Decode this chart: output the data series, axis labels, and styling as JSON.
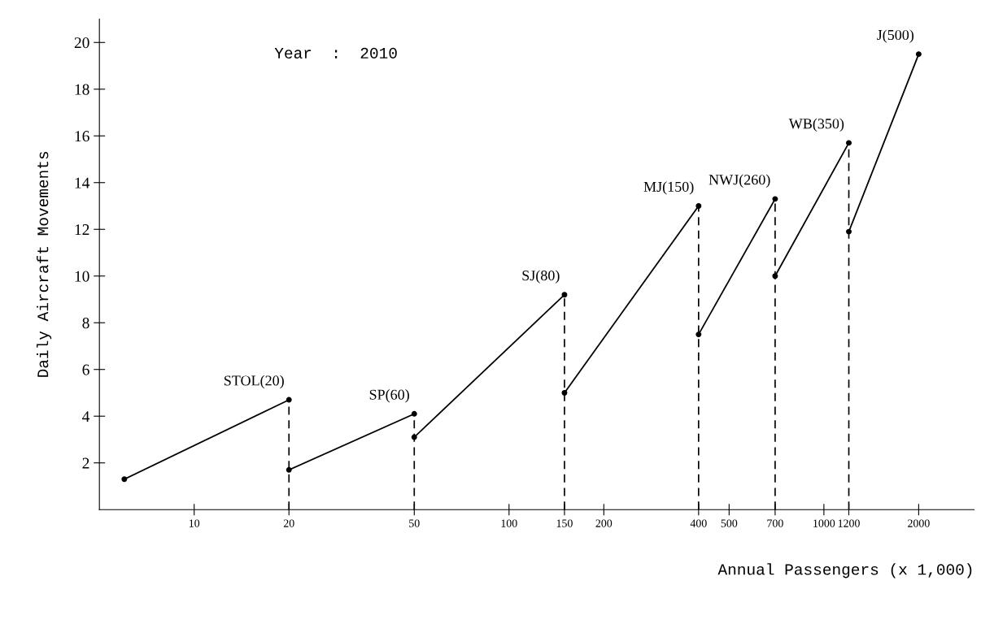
{
  "chart_data": {
    "type": "line",
    "xlabel": "Annual Passengers (x 1,000)",
    "ylabel": "Daily Aircraft Movements",
    "annotations": [
      "Year  :  2010"
    ],
    "log": "x",
    "xlim": [
      5,
      3000
    ],
    "xticks": [
      10,
      20,
      50,
      100,
      150,
      200,
      400,
      500,
      700,
      1000,
      1200,
      2000
    ],
    "ylim": [
      0,
      21
    ],
    "yticks": [
      2,
      4,
      6,
      8,
      10,
      12,
      14,
      16,
      18,
      20
    ],
    "marker": "circle",
    "line_style": "solid",
    "grid": false,
    "legend": false,
    "series": [
      {
        "name": "STOL(20)",
        "color": "#000000",
        "x": [
          6,
          20
        ],
        "values": [
          1.3,
          4.7
        ]
      },
      {
        "name": "SP(60)",
        "color": "#000000",
        "x": [
          20,
          50
        ],
        "values": [
          1.7,
          4.1
        ]
      },
      {
        "name": "SJ(80)",
        "color": "#000000",
        "x": [
          50,
          150
        ],
        "values": [
          3.1,
          9.2
        ]
      },
      {
        "name": "MJ(150)",
        "color": "#000000",
        "x": [
          150,
          400
        ],
        "values": [
          5.0,
          13.0
        ]
      },
      {
        "name": "NWJ(260)",
        "color": "#000000",
        "x": [
          400,
          700
        ],
        "values": [
          7.5,
          13.3
        ]
      },
      {
        "name": "WB(350)",
        "color": "#000000",
        "x": [
          700,
          1200
        ],
        "values": [
          10.0,
          15.7
        ]
      },
      {
        "name": "J(500)",
        "color": "#000000",
        "x": [
          1200,
          2000
        ],
        "values": [
          11.9,
          19.5
        ]
      }
    ],
    "ref_lines": [
      {
        "axis": "x",
        "value": 20,
        "line_style": "dashed",
        "color": "#000000"
      },
      {
        "axis": "x",
        "value": 50,
        "line_style": "dashed",
        "color": "#000000"
      },
      {
        "axis": "x",
        "value": 150,
        "line_style": "dashed",
        "color": "#000000"
      },
      {
        "axis": "x",
        "value": 400,
        "line_style": "dashed",
        "color": "#000000"
      },
      {
        "axis": "x",
        "value": 700,
        "line_style": "dashed",
        "color": "#000000"
      },
      {
        "axis": "x",
        "value": 1200,
        "line_style": "dashed",
        "color": "#000000"
      }
    ]
  }
}
